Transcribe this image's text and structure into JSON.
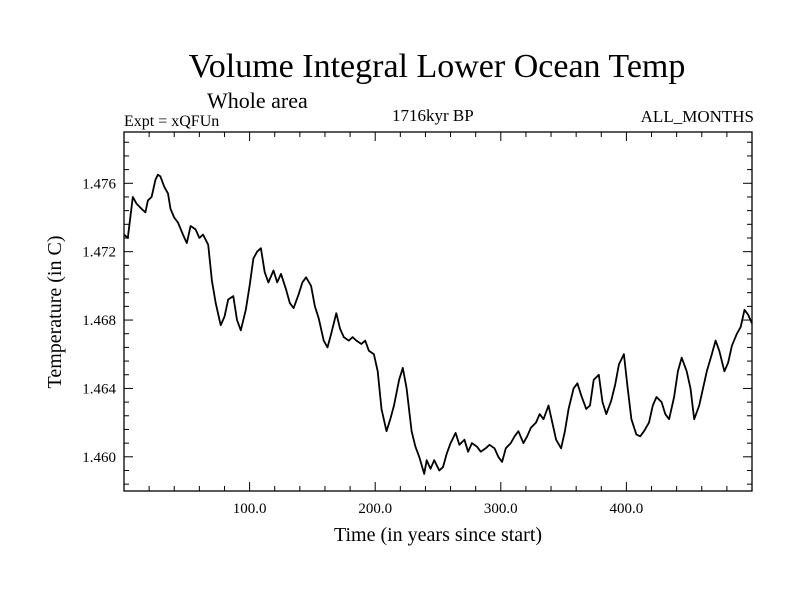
{
  "chart_data": {
    "type": "line",
    "title": "Volume Integral Lower Ocean Temp",
    "subtitle": "Whole area",
    "left_label": "Expt = xQFUn",
    "center_label": "1716kyr BP",
    "right_label": "ALL_MONTHS",
    "xlabel": "Time (in years since start)",
    "ylabel": "Temperature (in C)",
    "xlim": [
      0,
      500
    ],
    "ylim": [
      1.458,
      1.479
    ],
    "xticks": [
      100,
      200,
      300,
      400
    ],
    "xtick_labels": [
      "100.0",
      "200.0",
      "300.0",
      "400.0"
    ],
    "yticks": [
      1.46,
      1.464,
      1.468,
      1.472,
      1.476
    ],
    "ytick_labels": [
      "1.460",
      "1.464",
      "1.468",
      "1.472",
      "1.476"
    ],
    "series": [
      {
        "name": "temperature",
        "x": [
          0,
          3,
          7,
          10,
          14,
          17,
          19,
          22,
          25,
          27,
          29,
          32,
          35,
          37,
          40,
          43,
          47,
          50,
          53,
          57,
          60,
          63,
          67,
          70,
          73,
          77,
          80,
          83,
          87,
          90,
          93,
          97,
          100,
          103,
          106,
          109,
          112,
          115,
          119,
          122,
          125,
          129,
          132,
          135,
          139,
          142,
          145,
          149,
          152,
          155,
          159,
          162,
          165,
          169,
          172,
          175,
          179,
          182,
          185,
          189,
          192,
          195,
          199,
          202,
          205,
          209,
          212,
          215,
          219,
          222,
          225,
          229,
          232,
          235,
          239,
          241,
          244,
          247,
          251,
          254,
          257,
          260,
          264,
          267,
          271,
          274,
          277,
          281,
          284,
          288,
          291,
          295,
          298,
          301,
          304,
          308,
          311,
          314,
          318,
          321,
          324,
          328,
          331,
          334,
          338,
          341,
          344,
          348,
          351,
          354,
          358,
          361,
          364,
          368,
          371,
          374,
          378,
          381,
          384,
          388,
          391,
          394,
          398,
          401,
          404,
          408,
          411,
          414,
          418,
          421,
          424,
          428,
          431,
          434,
          438,
          441,
          444,
          448,
          451,
          454,
          458,
          461,
          464,
          468,
          471,
          474,
          478,
          481,
          484,
          488,
          491,
          494,
          497,
          500
        ],
        "values": [
          1.473,
          1.4728,
          1.4752,
          1.4748,
          1.4745,
          1.4743,
          1.475,
          1.4752,
          1.4762,
          1.4765,
          1.4764,
          1.4758,
          1.4754,
          1.4745,
          1.474,
          1.4737,
          1.473,
          1.4725,
          1.4735,
          1.4733,
          1.4728,
          1.473,
          1.4724,
          1.4703,
          1.469,
          1.4677,
          1.4682,
          1.4692,
          1.4694,
          1.468,
          1.4674,
          1.4686,
          1.47,
          1.4716,
          1.472,
          1.4722,
          1.4708,
          1.4702,
          1.4709,
          1.4702,
          1.4707,
          1.4698,
          1.469,
          1.4687,
          1.4695,
          1.4702,
          1.4705,
          1.47,
          1.4688,
          1.4681,
          1.4668,
          1.4664,
          1.4672,
          1.4684,
          1.4675,
          1.467,
          1.4668,
          1.467,
          1.4668,
          1.4666,
          1.4668,
          1.4662,
          1.466,
          1.465,
          1.4628,
          1.4615,
          1.4622,
          1.463,
          1.4645,
          1.4652,
          1.464,
          1.4615,
          1.4606,
          1.46,
          1.459,
          1.4598,
          1.4593,
          1.4598,
          1.4592,
          1.4594,
          1.4602,
          1.4608,
          1.4614,
          1.4607,
          1.461,
          1.4603,
          1.4608,
          1.4606,
          1.4603,
          1.4605,
          1.4607,
          1.4605,
          1.46,
          1.4597,
          1.4605,
          1.4608,
          1.4612,
          1.4615,
          1.4608,
          1.4612,
          1.4617,
          1.462,
          1.4625,
          1.4622,
          1.463,
          1.462,
          1.461,
          1.4605,
          1.4615,
          1.4628,
          1.464,
          1.4643,
          1.4636,
          1.4628,
          1.463,
          1.4645,
          1.4648,
          1.4632,
          1.4625,
          1.4633,
          1.4642,
          1.4654,
          1.466,
          1.464,
          1.4622,
          1.4613,
          1.4612,
          1.4615,
          1.462,
          1.463,
          1.4635,
          1.4632,
          1.4625,
          1.4622,
          1.4635,
          1.465,
          1.4658,
          1.465,
          1.464,
          1.4622,
          1.463,
          1.464,
          1.465,
          1.466,
          1.4668,
          1.4662,
          1.465,
          1.4655,
          1.4665,
          1.4672,
          1.4676,
          1.4686,
          1.4683,
          1.4678
        ]
      }
    ]
  }
}
